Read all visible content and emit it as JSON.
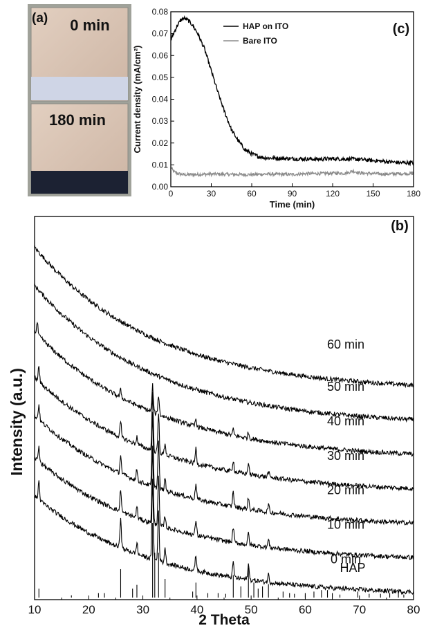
{
  "panel_a": {
    "label": "(a)",
    "samples": [
      {
        "time_label": "0 min",
        "strip_color": "#cfd5e6"
      },
      {
        "time_label": "180 min",
        "strip_color": "#1c2233"
      }
    ],
    "substrate_color": "#d9c4b4"
  },
  "chart_data": [
    {
      "type": "line",
      "panel": "(c)",
      "xlabel": "Time (min)",
      "ylabel": "Current density (mA/cm²)",
      "xlim": [
        0,
        180
      ],
      "ylim": [
        0,
        0.08
      ],
      "xticks": [
        0,
        30,
        60,
        90,
        120,
        150,
        180
      ],
      "yticks": [
        0.0,
        0.01,
        0.02,
        0.03,
        0.04,
        0.05,
        0.06,
        0.07,
        0.08
      ],
      "ytick_labels": [
        "0.00",
        "0.01",
        "0.02",
        "0.03",
        "0.04",
        "0.05",
        "0.06",
        "0.07",
        "0.08"
      ],
      "legend": "top-center",
      "grid": false,
      "series": [
        {
          "name": "HAP on ITO",
          "color": "#000000",
          "x": [
            0,
            2,
            5,
            8,
            10,
            13,
            16,
            20,
            25,
            30,
            35,
            40,
            45,
            50,
            55,
            60,
            65,
            70,
            80,
            90,
            100,
            110,
            120,
            130,
            140,
            150,
            160,
            170,
            180
          ],
          "y": [
            0.067,
            0.07,
            0.074,
            0.0765,
            0.077,
            0.076,
            0.074,
            0.07,
            0.063,
            0.053,
            0.043,
            0.034,
            0.026,
            0.021,
            0.017,
            0.015,
            0.0138,
            0.0132,
            0.013,
            0.0128,
            0.0127,
            0.0126,
            0.0128,
            0.0127,
            0.0125,
            0.012,
            0.0115,
            0.011,
            0.011
          ]
        },
        {
          "name": "Bare ITO",
          "color": "#8c8c8c",
          "x": [
            0,
            2,
            5,
            10,
            20,
            30,
            40,
            50,
            60,
            70,
            80,
            90,
            100,
            110,
            120,
            130,
            135,
            140,
            150,
            160,
            170,
            180
          ],
          "y": [
            0.009,
            0.007,
            0.006,
            0.0055,
            0.0056,
            0.0058,
            0.0057,
            0.0056,
            0.0055,
            0.0058,
            0.0057,
            0.0056,
            0.006,
            0.006,
            0.0062,
            0.0062,
            0.0072,
            0.0063,
            0.006,
            0.0058,
            0.006,
            0.006
          ]
        }
      ]
    },
    {
      "type": "line",
      "panel": "(b)",
      "xlabel": "2 Theta",
      "ylabel": "Intensity (a.u.)",
      "xlim": [
        10,
        80
      ],
      "xticks": [
        10,
        20,
        30,
        40,
        50,
        60,
        70,
        80
      ],
      "stacked": true,
      "series": [
        {
          "name": "60 min",
          "baseline": [
            0.92,
            0.56
          ],
          "peaks": []
        },
        {
          "name": "50 min",
          "baseline": [
            0.82,
            0.47
          ],
          "peaks": []
        },
        {
          "name": "40 min",
          "baseline": [
            0.7,
            0.38
          ],
          "peaks": [
            [
              10.5,
              0.03
            ],
            [
              25.9,
              0.02
            ],
            [
              31.8,
              0.07
            ],
            [
              32.9,
              0.05
            ],
            [
              39.8,
              0.02
            ],
            [
              46.7,
              0.015
            ],
            [
              49.5,
              0.015
            ]
          ]
        },
        {
          "name": "30 min",
          "baseline": [
            0.58,
            0.29
          ],
          "peaks": [
            [
              10.8,
              0.04
            ],
            [
              25.9,
              0.04
            ],
            [
              28.9,
              0.02
            ],
            [
              31.8,
              0.15
            ],
            [
              32.9,
              0.1
            ],
            [
              34.1,
              0.03
            ],
            [
              39.8,
              0.04
            ],
            [
              46.7,
              0.03
            ],
            [
              49.5,
              0.03
            ],
            [
              53.2,
              0.015
            ]
          ]
        },
        {
          "name": "20 min",
          "baseline": [
            0.48,
            0.2
          ],
          "peaks": [
            [
              10.8,
              0.04
            ],
            [
              25.9,
              0.05
            ],
            [
              28.9,
              0.03
            ],
            [
              31.8,
              0.19
            ],
            [
              32.9,
              0.12
            ],
            [
              34.1,
              0.03
            ],
            [
              39.8,
              0.04
            ],
            [
              46.7,
              0.04
            ],
            [
              49.5,
              0.03
            ],
            [
              53.2,
              0.02
            ]
          ]
        },
        {
          "name": "10 min",
          "baseline": [
            0.37,
            0.11
          ],
          "peaks": [
            [
              10.8,
              0.04
            ],
            [
              25.9,
              0.06
            ],
            [
              28.9,
              0.03
            ],
            [
              31.8,
              0.2
            ],
            [
              32.9,
              0.13
            ],
            [
              34.1,
              0.03
            ],
            [
              39.8,
              0.04
            ],
            [
              46.7,
              0.04
            ],
            [
              49.5,
              0.03
            ],
            [
              53.2,
              0.02
            ]
          ]
        },
        {
          "name": "0 min",
          "baseline": [
            0.27,
            0.02
          ],
          "peaks": [
            [
              10.8,
              0.05
            ],
            [
              25.9,
              0.08
            ],
            [
              28.9,
              0.03
            ],
            [
              31.8,
              0.21
            ],
            [
              32.9,
              0.13
            ],
            [
              34.1,
              0.04
            ],
            [
              39.8,
              0.04
            ],
            [
              46.7,
              0.04
            ],
            [
              49.5,
              0.04
            ],
            [
              53.2,
              0.02
            ]
          ]
        }
      ],
      "reference": {
        "name": "HAP",
        "sticks": [
          [
            10.8,
            0.12
          ],
          [
            16.8,
            0.03
          ],
          [
            21.8,
            0.06
          ],
          [
            22.9,
            0.06
          ],
          [
            25.9,
            0.38
          ],
          [
            28.1,
            0.12
          ],
          [
            28.9,
            0.17
          ],
          [
            31.8,
            1.0
          ],
          [
            32.2,
            0.6
          ],
          [
            32.9,
            0.6
          ],
          [
            34.1,
            0.25
          ],
          [
            39.2,
            0.08
          ],
          [
            39.8,
            0.2
          ],
          [
            42.0,
            0.06
          ],
          [
            43.9,
            0.06
          ],
          [
            45.3,
            0.05
          ],
          [
            46.7,
            0.3
          ],
          [
            48.1,
            0.15
          ],
          [
            49.5,
            0.4
          ],
          [
            50.5,
            0.2
          ],
          [
            51.3,
            0.12
          ],
          [
            52.1,
            0.15
          ],
          [
            53.2,
            0.18
          ],
          [
            55.9,
            0.08
          ],
          [
            57.1,
            0.06
          ],
          [
            58.0,
            0.05
          ],
          [
            60.0,
            0.06
          ],
          [
            61.6,
            0.08
          ],
          [
            63.0,
            0.1
          ],
          [
            64.1,
            0.1
          ],
          [
            65.0,
            0.06
          ],
          [
            66.4,
            0.04
          ],
          [
            69.7,
            0.08
          ],
          [
            71.8,
            0.05
          ],
          [
            73.9,
            0.05
          ],
          [
            75.6,
            0.06
          ],
          [
            77.2,
            0.06
          ],
          [
            78.2,
            0.04
          ]
        ]
      }
    }
  ]
}
